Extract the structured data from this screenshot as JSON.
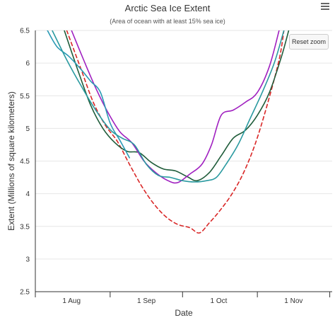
{
  "header": {
    "menu_icon": "hamburger-menu-icon"
  },
  "controls": {
    "reset_zoom_label": "Reset zoom"
  },
  "chart_data": {
    "type": "line",
    "title": "Arctic Sea Ice Extent",
    "subtitle": "(Area of ocean with at least 15% sea ice)",
    "xlabel": "Date",
    "ylabel": "Extent (Millions of square kilometers)",
    "ylim": [
      2.5,
      6.5
    ],
    "xlim": [
      "2000-07-17",
      "2000-11-17"
    ],
    "x_ticks": [
      {
        "label": "1 Aug",
        "date": "2000-08-01"
      },
      {
        "label": "1 Sep",
        "date": "2000-09-01"
      },
      {
        "label": "1 Oct",
        "date": "2000-10-01"
      },
      {
        "label": "1 Nov",
        "date": "2000-11-01"
      }
    ],
    "y_ticks": [
      "2.5",
      "3",
      "3.5",
      "4",
      "4.5",
      "5",
      "5.5",
      "6",
      "6.5"
    ],
    "grid": {
      "x": false,
      "y": true
    },
    "series": [
      {
        "color": "#d92626",
        "dash": "dashed",
        "points": [
          [
            "2000-07-30",
            6.5
          ],
          [
            "2000-08-05",
            5.9
          ],
          [
            "2000-08-10",
            5.4
          ],
          [
            "2000-08-15",
            5.05
          ],
          [
            "2000-08-20",
            4.8
          ],
          [
            "2000-08-25",
            4.45
          ],
          [
            "2000-08-30",
            4.12
          ],
          [
            "2000-09-04",
            3.85
          ],
          [
            "2000-09-09",
            3.65
          ],
          [
            "2000-09-14",
            3.53
          ],
          [
            "2000-09-19",
            3.48
          ],
          [
            "2000-09-23",
            3.4
          ],
          [
            "2000-09-27",
            3.55
          ],
          [
            "2000-10-01",
            3.72
          ],
          [
            "2000-10-06",
            3.97
          ],
          [
            "2000-10-11",
            4.3
          ],
          [
            "2000-10-16",
            4.75
          ],
          [
            "2000-10-21",
            5.35
          ],
          [
            "2000-10-26",
            6.05
          ],
          [
            "2000-10-28",
            6.5
          ]
        ]
      },
      {
        "color": "#1f5c3a",
        "dash": "solid",
        "points": [
          [
            "2000-07-29",
            6.5
          ],
          [
            "2000-08-04",
            5.85
          ],
          [
            "2000-08-09",
            5.35
          ],
          [
            "2000-08-14",
            5.0
          ],
          [
            "2000-08-19",
            4.78
          ],
          [
            "2000-08-24",
            4.65
          ],
          [
            "2000-08-29",
            4.63
          ],
          [
            "2000-09-03",
            4.48
          ],
          [
            "2000-09-08",
            4.38
          ],
          [
            "2000-09-13",
            4.35
          ],
          [
            "2000-09-18",
            4.26
          ],
          [
            "2000-09-22",
            4.2
          ],
          [
            "2000-09-27",
            4.32
          ],
          [
            "2000-10-02",
            4.58
          ],
          [
            "2000-10-07",
            4.85
          ],
          [
            "2000-10-12",
            4.97
          ],
          [
            "2000-10-17",
            5.2
          ],
          [
            "2000-10-22",
            5.55
          ],
          [
            "2000-10-27",
            6.1
          ],
          [
            "2000-10-30",
            6.5
          ]
        ]
      },
      {
        "color": "#a020c0",
        "dash": "solid",
        "points": [
          [
            "2000-08-01",
            6.5
          ],
          [
            "2000-08-06",
            6.05
          ],
          [
            "2000-08-11",
            5.62
          ],
          [
            "2000-08-16",
            5.25
          ],
          [
            "2000-08-21",
            4.95
          ],
          [
            "2000-08-26",
            4.78
          ],
          [
            "2000-08-31",
            4.5
          ],
          [
            "2000-09-05",
            4.32
          ],
          [
            "2000-09-10",
            4.2
          ],
          [
            "2000-09-14",
            4.17
          ],
          [
            "2000-09-19",
            4.3
          ],
          [
            "2000-09-24",
            4.45
          ],
          [
            "2000-09-28",
            4.75
          ],
          [
            "2000-10-02",
            5.2
          ],
          [
            "2000-10-07",
            5.28
          ],
          [
            "2000-10-12",
            5.4
          ],
          [
            "2000-10-17",
            5.55
          ],
          [
            "2000-10-22",
            5.95
          ],
          [
            "2000-10-26",
            6.5
          ]
        ]
      },
      {
        "color": "#2a9ab5",
        "dash": "solid",
        "points": [
          [
            "2000-07-22",
            6.5
          ],
          [
            "2000-07-26",
            6.25
          ],
          [
            "2000-07-31",
            6.1
          ],
          [
            "2000-08-05",
            5.9
          ],
          [
            "2000-08-09",
            5.72
          ],
          [
            "2000-08-13",
            5.55
          ],
          [
            "2000-08-17",
            5.08
          ],
          [
            "2000-08-21",
            4.82
          ],
          [
            "2000-08-25",
            4.55
          ]
        ]
      },
      {
        "color": "#2a9aa0",
        "dash": "solid",
        "points": [
          [
            "2000-07-24",
            6.5
          ],
          [
            "2000-07-30",
            6.05
          ],
          [
            "2000-08-05",
            5.65
          ],
          [
            "2000-08-11",
            5.28
          ],
          [
            "2000-08-17",
            4.98
          ],
          [
            "2000-08-22",
            4.85
          ],
          [
            "2000-08-27",
            4.75
          ],
          [
            "2000-09-01",
            4.45
          ],
          [
            "2000-09-06",
            4.28
          ],
          [
            "2000-09-11",
            4.25
          ],
          [
            "2000-09-16",
            4.2
          ],
          [
            "2000-09-21",
            4.18
          ],
          [
            "2000-09-26",
            4.2
          ],
          [
            "2000-09-30",
            4.25
          ],
          [
            "2000-10-04",
            4.45
          ],
          [
            "2000-10-09",
            4.75
          ],
          [
            "2000-10-14",
            5.15
          ],
          [
            "2000-10-19",
            5.55
          ],
          [
            "2000-10-24",
            6.0
          ],
          [
            "2000-10-28",
            6.5
          ]
        ]
      }
    ]
  }
}
